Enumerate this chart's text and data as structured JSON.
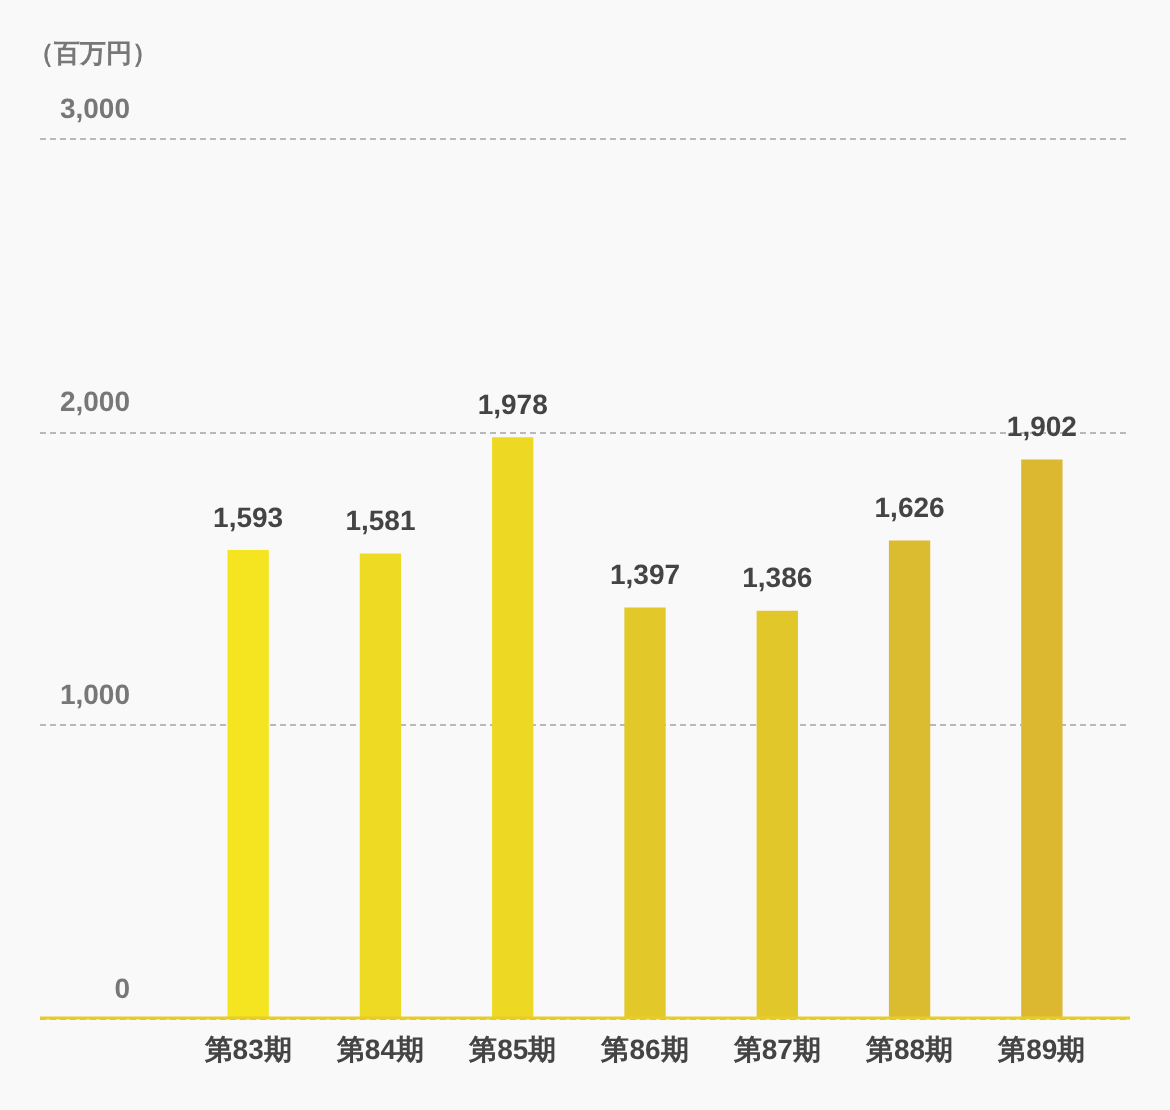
{
  "chart_data": {
    "type": "bar",
    "ylabel": "（百万円）",
    "categories": [
      "第83期",
      "第84期",
      "第85期",
      "第86期",
      "第87期",
      "第88期",
      "第89期"
    ],
    "values": [
      1593,
      1581,
      1978,
      1397,
      1386,
      1626,
      1902
    ],
    "colors": [
      "#f5e520",
      "#eed923",
      "#edd823",
      "#e3c82a",
      "#e2c72a",
      "#dbbb30",
      "#dbb830"
    ],
    "value_labels": [
      "1,593",
      "1,581",
      "1,978",
      "1,397",
      "1,386",
      "1,626",
      "1,902"
    ],
    "ylim": [
      0,
      3000
    ],
    "yticks": [
      0,
      {
        "value": 1000,
        "label": "1,000"
      },
      {
        "value": 2000,
        "label": "2,000"
      },
      {
        "value": 3000,
        "label": "3,000"
      }
    ],
    "grid": "y"
  }
}
